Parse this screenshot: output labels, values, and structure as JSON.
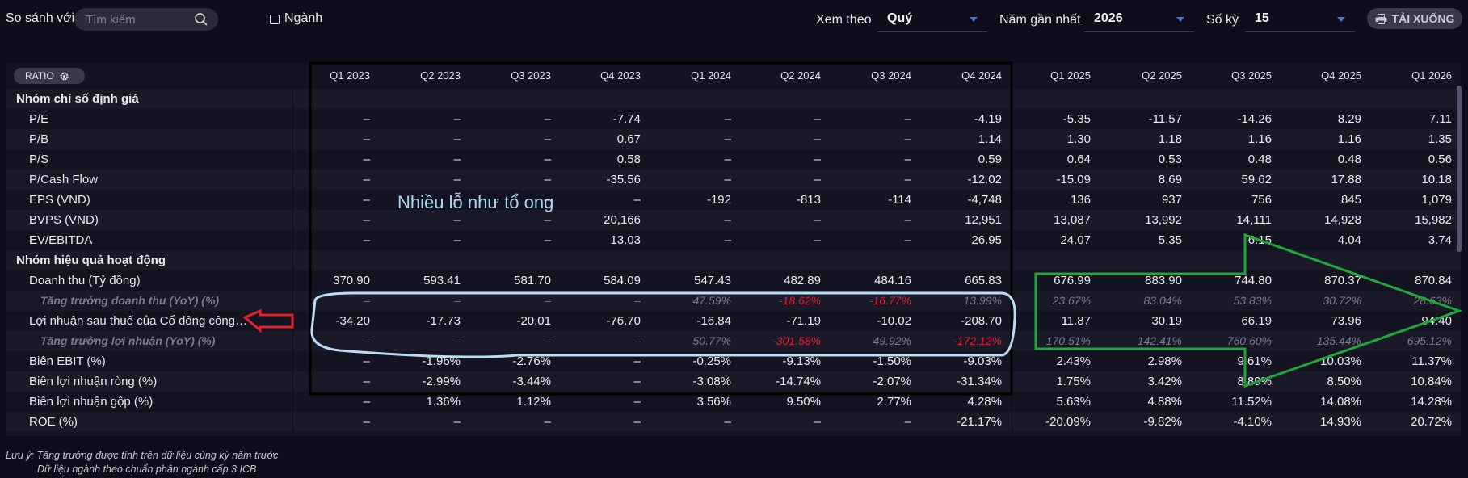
{
  "toolbar": {
    "compare_label": "So sánh với",
    "search_placeholder": "Tìm kiếm",
    "industry_label": "Ngành",
    "view_by_label": "Xem theo",
    "view_by_value": "Quý",
    "recent_year_label": "Năm gần nhất",
    "recent_year_value": "2026",
    "periods_label": "Số kỳ",
    "periods_value": "15",
    "download_label": "TẢI XUỐNG"
  },
  "table": {
    "ratio_label": "RATIO",
    "columns": [
      "Q1 2023",
      "Q2 2023",
      "Q3 2023",
      "Q4 2023",
      "Q1 2024",
      "Q2 2024",
      "Q3 2024",
      "Q4 2024",
      "Q1 2025",
      "Q2 2025",
      "Q3 2025",
      "Q4 2025",
      "Q1 2026"
    ],
    "rows": [
      {
        "label": "Nhóm chỉ số định giá",
        "type": "group",
        "values": []
      },
      {
        "label": "P/E",
        "type": "item",
        "values": [
          "–",
          "–",
          "–",
          "-7.74",
          "–",
          "–",
          "–",
          "-4.19",
          "-5.35",
          "-11.57",
          "-14.26",
          "8.29",
          "7.11"
        ]
      },
      {
        "label": "P/B",
        "type": "item",
        "values": [
          "–",
          "–",
          "–",
          "0.67",
          "–",
          "–",
          "–",
          "1.14",
          "1.30",
          "1.18",
          "1.16",
          "1.16",
          "1.35"
        ]
      },
      {
        "label": "P/S",
        "type": "item",
        "values": [
          "–",
          "–",
          "–",
          "0.58",
          "–",
          "–",
          "–",
          "0.59",
          "0.64",
          "0.53",
          "0.48",
          "0.48",
          "0.56"
        ]
      },
      {
        "label": "P/Cash Flow",
        "type": "item",
        "values": [
          "–",
          "–",
          "–",
          "-35.56",
          "–",
          "–",
          "–",
          "-12.02",
          "-15.09",
          "8.69",
          "59.62",
          "17.88",
          "10.18"
        ]
      },
      {
        "label": "EPS (VND)",
        "type": "item",
        "values": [
          "–",
          "–",
          "–",
          "–",
          "-192",
          "-813",
          "-114",
          "-4,748",
          "136",
          "937",
          "756",
          "845",
          "1,079"
        ]
      },
      {
        "label": "BVPS (VND)",
        "type": "item",
        "values": [
          "–",
          "–",
          "–",
          "20,166",
          "–",
          "–",
          "–",
          "12,951",
          "13,087",
          "13,992",
          "14,111",
          "14,928",
          "15,982"
        ]
      },
      {
        "label": "EV/EBITDA",
        "type": "item",
        "values": [
          "–",
          "–",
          "–",
          "13.03",
          "–",
          "–",
          "–",
          "26.95",
          "24.07",
          "5.35",
          "6.15",
          "4.04",
          "3.74"
        ]
      },
      {
        "label": "Nhóm hiệu quả hoạt động",
        "type": "group",
        "values": []
      },
      {
        "label": "Doanh thu (Tỷ đồng)",
        "type": "item",
        "values": [
          "370.90",
          "593.41",
          "581.70",
          "584.09",
          "547.43",
          "482.89",
          "484.16",
          "665.83",
          "676.99",
          "883.90",
          "744.80",
          "870.37",
          "870.84"
        ]
      },
      {
        "label": "Tăng trưởng doanh thu (YoY) (%)",
        "type": "growth",
        "values": [
          "–",
          "–",
          "–",
          "–",
          "47.59%",
          "-18.62%",
          "-16.77%",
          "13.99%",
          "23.67%",
          "83.04%",
          "53.83%",
          "30.72%",
          "28.63%"
        ]
      },
      {
        "label": "Lợi nhuận sau thuế của Cổ đông công…",
        "type": "item",
        "values": [
          "-34.20",
          "-17.73",
          "-20.01",
          "-76.70",
          "-16.84",
          "-71.19",
          "-10.02",
          "-208.70",
          "11.87",
          "30.19",
          "66.19",
          "73.96",
          "94.40"
        ]
      },
      {
        "label": "Tăng trưởng lợi nhuận (YoY) (%)",
        "type": "growth",
        "values": [
          "–",
          "–",
          "–",
          "–",
          "50.77%",
          "-301.58%",
          "49.92%",
          "-172.12%",
          "170.51%",
          "142.41%",
          "760.60%",
          "135.44%",
          "695.12%"
        ]
      },
      {
        "label": "Biên EBIT (%)",
        "type": "item",
        "values": [
          "–",
          "-1.96%",
          "-2.76%",
          "–",
          "-0.25%",
          "-9.13%",
          "-1.50%",
          "-9.03%",
          "2.43%",
          "2.98%",
          "9.61%",
          "10.03%",
          "11.37%"
        ]
      },
      {
        "label": "Biên lợi nhuận ròng (%)",
        "type": "item",
        "values": [
          "–",
          "-2.99%",
          "-3.44%",
          "–",
          "-3.08%",
          "-14.74%",
          "-2.07%",
          "-31.34%",
          "1.75%",
          "3.42%",
          "8.89%",
          "8.50%",
          "10.84%"
        ]
      },
      {
        "label": "Biên lợi nhuận gộp (%)",
        "type": "item",
        "values": [
          "–",
          "1.36%",
          "1.12%",
          "–",
          "3.56%",
          "9.50%",
          "2.77%",
          "4.28%",
          "5.63%",
          "4.88%",
          "11.52%",
          "14.08%",
          "14.28%"
        ]
      },
      {
        "label": "ROE (%)",
        "type": "item",
        "values": [
          "–",
          "–",
          "–",
          "–",
          "–",
          "–",
          "–",
          "-21.17%",
          "-20.09%",
          "-9.82%",
          "-4.10%",
          "14.93%",
          "20.72%"
        ]
      }
    ]
  },
  "annotation": {
    "text": "Nhiều lỗ như tổ ong"
  },
  "notes": {
    "line1": "Lưu ý: Tăng trưởng được tính trên dữ liệu cùng kỳ năm trước",
    "line2": "Dữ liệu ngành theo chuẩn phân ngành cấp 3 ICB"
  },
  "colors": {
    "negative": "#e01b3a",
    "accent": "#3d7bd9",
    "annotation_blue": "#a9d6ee",
    "arrow_green": "#1fa83a",
    "arrow_red": "#e0222a"
  }
}
